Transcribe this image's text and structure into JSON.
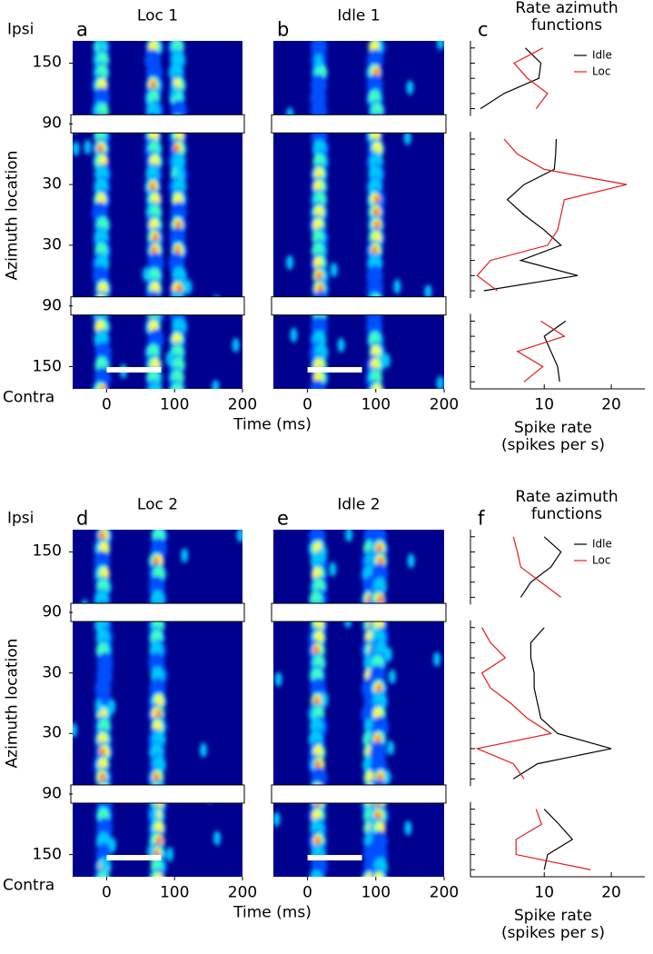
{
  "chart_data": [
    {
      "type": "heatmap",
      "panel": "a",
      "title": "Loc 1",
      "ylabel": "Azimuth location",
      "xlabel": "Time (ms)",
      "top_label": "Ipsi",
      "bottom_label": "Contra",
      "xlim": [
        -50,
        200
      ],
      "xticks": [
        0,
        100,
        200
      ],
      "ylim": [
        172,
        -172
      ],
      "yticks": [
        150,
        90,
        30,
        {
          "value": -30,
          "label": "30"
        },
        {
          "value": -90,
          "label": "90"
        },
        {
          "value": -150,
          "label": "150"
        }
      ]
    },
    {
      "type": "heatmap",
      "panel": "b",
      "title": "Idle 1",
      "xlim": [
        -50,
        200
      ],
      "xticks": [
        0,
        100,
        200
      ],
      "ylim": [
        172,
        -172
      ]
    },
    {
      "type": "line",
      "panel": "c",
      "title": "Rate azimuth functions",
      "xlabel": "Spike rate (spikes per s)",
      "legend": "upper right",
      "xlim": [
        -1,
        25
      ],
      "xticks": [
        10,
        20
      ],
      "ylim": [
        172,
        -172
      ],
      "y": [
        165,
        150,
        135,
        120,
        105,
        90,
        75,
        60,
        45,
        30,
        15,
        0,
        -15,
        -30,
        -45,
        -60,
        -75,
        -90,
        -105,
        -120,
        -135,
        -150,
        -165
      ],
      "series": [
        {
          "name": "Idle",
          "color": "#000000",
          "values": [
            7.2,
            9.5,
            9.2,
            4,
            0.5,
            null,
            11.8,
            11.7,
            11.5,
            7,
            4.5,
            7,
            10,
            12.5,
            6.5,
            15,
            1,
            null,
            13.2,
            10,
            11,
            12,
            12.3
          ]
        },
        {
          "name": "Loc",
          "color": "#e41a1c",
          "values": [
            9.8,
            5.5,
            7.5,
            10.5,
            8.8,
            null,
            4,
            6,
            10,
            22.3,
            13,
            12.5,
            12,
            10.5,
            2,
            0,
            3,
            null,
            9.5,
            13,
            6,
            9.8,
            7
          ]
        }
      ]
    },
    {
      "type": "heatmap",
      "panel": "d",
      "title": "Loc 2",
      "ylabel": "Azimuth location",
      "xlabel": "Time (ms)",
      "top_label": "Ipsi",
      "bottom_label": "Contra",
      "xlim": [
        -50,
        200
      ],
      "xticks": [
        0,
        100,
        200
      ],
      "ylim": [
        172,
        -172
      ],
      "yticks": [
        150,
        90,
        30,
        {
          "value": -30,
          "label": "30"
        },
        {
          "value": -90,
          "label": "90"
        },
        {
          "value": -150,
          "label": "150"
        }
      ]
    },
    {
      "type": "heatmap",
      "panel": "e",
      "title": "Idle 2",
      "xlim": [
        -50,
        200
      ],
      "xticks": [
        0,
        100,
        200
      ],
      "ylim": [
        172,
        -172
      ]
    },
    {
      "type": "line",
      "panel": "f",
      "title": "Rate azimuth functions",
      "xlabel": "Spike rate (spikes per s)",
      "legend": "upper right",
      "xlim": [
        -1,
        25
      ],
      "xticks": [
        10,
        20
      ],
      "ylim": [
        172,
        -172
      ],
      "y": [
        165,
        150,
        135,
        120,
        105,
        90,
        75,
        60,
        45,
        30,
        15,
        0,
        -15,
        -30,
        -45,
        -60,
        -75,
        -90,
        -105,
        -120,
        -135,
        -150,
        -165
      ],
      "series": [
        {
          "name": "Idle",
          "color": "#000000",
          "values": [
            10,
            12.5,
            11,
            8,
            6.5,
            null,
            10,
            8,
            8,
            8.5,
            8.5,
            9,
            9.5,
            12,
            20,
            9,
            5.4,
            null,
            10,
            12.2,
            14.2,
            10.5,
            10
          ]
        },
        {
          "name": "Loc",
          "color": "#e41a1c",
          "values": [
            5.4,
            6,
            6.5,
            9.5,
            12.5,
            null,
            0.7,
            2,
            4.2,
            0.7,
            2,
            5,
            7.5,
            11,
            0,
            5.4,
            7,
            null,
            8.8,
            9.6,
            5.8,
            5.8,
            16.9
          ]
        }
      ]
    }
  ]
}
